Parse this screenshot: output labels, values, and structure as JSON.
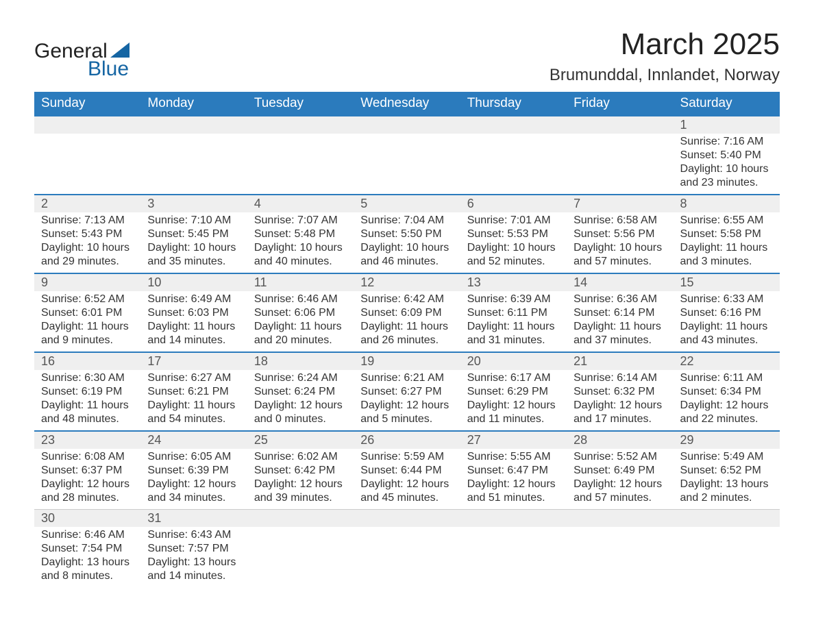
{
  "brand": {
    "name1": "General",
    "name2": "Blue"
  },
  "header": {
    "title": "March 2025",
    "location": "Brumunddal, Innlandet, Norway"
  },
  "colors": {
    "header_bg": "#2b7bbd",
    "header_text": "#ffffff",
    "row_divider": "#2b7bbd",
    "daynum_bg": "#efefef",
    "text": "#333333",
    "logo_blue": "#1565a3"
  },
  "calendar": {
    "type": "table",
    "columns": [
      "Sunday",
      "Monday",
      "Tuesday",
      "Wednesday",
      "Thursday",
      "Friday",
      "Saturday"
    ],
    "weeks": [
      [
        null,
        null,
        null,
        null,
        null,
        null,
        {
          "day": "1",
          "sunrise": "Sunrise: 7:16 AM",
          "sunset": "Sunset: 5:40 PM",
          "daylight1": "Daylight: 10 hours",
          "daylight2": "and 23 minutes."
        }
      ],
      [
        {
          "day": "2",
          "sunrise": "Sunrise: 7:13 AM",
          "sunset": "Sunset: 5:43 PM",
          "daylight1": "Daylight: 10 hours",
          "daylight2": "and 29 minutes."
        },
        {
          "day": "3",
          "sunrise": "Sunrise: 7:10 AM",
          "sunset": "Sunset: 5:45 PM",
          "daylight1": "Daylight: 10 hours",
          "daylight2": "and 35 minutes."
        },
        {
          "day": "4",
          "sunrise": "Sunrise: 7:07 AM",
          "sunset": "Sunset: 5:48 PM",
          "daylight1": "Daylight: 10 hours",
          "daylight2": "and 40 minutes."
        },
        {
          "day": "5",
          "sunrise": "Sunrise: 7:04 AM",
          "sunset": "Sunset: 5:50 PM",
          "daylight1": "Daylight: 10 hours",
          "daylight2": "and 46 minutes."
        },
        {
          "day": "6",
          "sunrise": "Sunrise: 7:01 AM",
          "sunset": "Sunset: 5:53 PM",
          "daylight1": "Daylight: 10 hours",
          "daylight2": "and 52 minutes."
        },
        {
          "day": "7",
          "sunrise": "Sunrise: 6:58 AM",
          "sunset": "Sunset: 5:56 PM",
          "daylight1": "Daylight: 10 hours",
          "daylight2": "and 57 minutes."
        },
        {
          "day": "8",
          "sunrise": "Sunrise: 6:55 AM",
          "sunset": "Sunset: 5:58 PM",
          "daylight1": "Daylight: 11 hours",
          "daylight2": "and 3 minutes."
        }
      ],
      [
        {
          "day": "9",
          "sunrise": "Sunrise: 6:52 AM",
          "sunset": "Sunset: 6:01 PM",
          "daylight1": "Daylight: 11 hours",
          "daylight2": "and 9 minutes."
        },
        {
          "day": "10",
          "sunrise": "Sunrise: 6:49 AM",
          "sunset": "Sunset: 6:03 PM",
          "daylight1": "Daylight: 11 hours",
          "daylight2": "and 14 minutes."
        },
        {
          "day": "11",
          "sunrise": "Sunrise: 6:46 AM",
          "sunset": "Sunset: 6:06 PM",
          "daylight1": "Daylight: 11 hours",
          "daylight2": "and 20 minutes."
        },
        {
          "day": "12",
          "sunrise": "Sunrise: 6:42 AM",
          "sunset": "Sunset: 6:09 PM",
          "daylight1": "Daylight: 11 hours",
          "daylight2": "and 26 minutes."
        },
        {
          "day": "13",
          "sunrise": "Sunrise: 6:39 AM",
          "sunset": "Sunset: 6:11 PM",
          "daylight1": "Daylight: 11 hours",
          "daylight2": "and 31 minutes."
        },
        {
          "day": "14",
          "sunrise": "Sunrise: 6:36 AM",
          "sunset": "Sunset: 6:14 PM",
          "daylight1": "Daylight: 11 hours",
          "daylight2": "and 37 minutes."
        },
        {
          "day": "15",
          "sunrise": "Sunrise: 6:33 AM",
          "sunset": "Sunset: 6:16 PM",
          "daylight1": "Daylight: 11 hours",
          "daylight2": "and 43 minutes."
        }
      ],
      [
        {
          "day": "16",
          "sunrise": "Sunrise: 6:30 AM",
          "sunset": "Sunset: 6:19 PM",
          "daylight1": "Daylight: 11 hours",
          "daylight2": "and 48 minutes."
        },
        {
          "day": "17",
          "sunrise": "Sunrise: 6:27 AM",
          "sunset": "Sunset: 6:21 PM",
          "daylight1": "Daylight: 11 hours",
          "daylight2": "and 54 minutes."
        },
        {
          "day": "18",
          "sunrise": "Sunrise: 6:24 AM",
          "sunset": "Sunset: 6:24 PM",
          "daylight1": "Daylight: 12 hours",
          "daylight2": "and 0 minutes."
        },
        {
          "day": "19",
          "sunrise": "Sunrise: 6:21 AM",
          "sunset": "Sunset: 6:27 PM",
          "daylight1": "Daylight: 12 hours",
          "daylight2": "and 5 minutes."
        },
        {
          "day": "20",
          "sunrise": "Sunrise: 6:17 AM",
          "sunset": "Sunset: 6:29 PM",
          "daylight1": "Daylight: 12 hours",
          "daylight2": "and 11 minutes."
        },
        {
          "day": "21",
          "sunrise": "Sunrise: 6:14 AM",
          "sunset": "Sunset: 6:32 PM",
          "daylight1": "Daylight: 12 hours",
          "daylight2": "and 17 minutes."
        },
        {
          "day": "22",
          "sunrise": "Sunrise: 6:11 AM",
          "sunset": "Sunset: 6:34 PM",
          "daylight1": "Daylight: 12 hours",
          "daylight2": "and 22 minutes."
        }
      ],
      [
        {
          "day": "23",
          "sunrise": "Sunrise: 6:08 AM",
          "sunset": "Sunset: 6:37 PM",
          "daylight1": "Daylight: 12 hours",
          "daylight2": "and 28 minutes."
        },
        {
          "day": "24",
          "sunrise": "Sunrise: 6:05 AM",
          "sunset": "Sunset: 6:39 PM",
          "daylight1": "Daylight: 12 hours",
          "daylight2": "and 34 minutes."
        },
        {
          "day": "25",
          "sunrise": "Sunrise: 6:02 AM",
          "sunset": "Sunset: 6:42 PM",
          "daylight1": "Daylight: 12 hours",
          "daylight2": "and 39 minutes."
        },
        {
          "day": "26",
          "sunrise": "Sunrise: 5:59 AM",
          "sunset": "Sunset: 6:44 PM",
          "daylight1": "Daylight: 12 hours",
          "daylight2": "and 45 minutes."
        },
        {
          "day": "27",
          "sunrise": "Sunrise: 5:55 AM",
          "sunset": "Sunset: 6:47 PM",
          "daylight1": "Daylight: 12 hours",
          "daylight2": "and 51 minutes."
        },
        {
          "day": "28",
          "sunrise": "Sunrise: 5:52 AM",
          "sunset": "Sunset: 6:49 PM",
          "daylight1": "Daylight: 12 hours",
          "daylight2": "and 57 minutes."
        },
        {
          "day": "29",
          "sunrise": "Sunrise: 5:49 AM",
          "sunset": "Sunset: 6:52 PM",
          "daylight1": "Daylight: 13 hours",
          "daylight2": "and 2 minutes."
        }
      ],
      [
        {
          "day": "30",
          "sunrise": "Sunrise: 6:46 AM",
          "sunset": "Sunset: 7:54 PM",
          "daylight1": "Daylight: 13 hours",
          "daylight2": "and 8 minutes."
        },
        {
          "day": "31",
          "sunrise": "Sunrise: 6:43 AM",
          "sunset": "Sunset: 7:57 PM",
          "daylight1": "Daylight: 13 hours",
          "daylight2": "and 14 minutes."
        },
        null,
        null,
        null,
        null,
        null
      ]
    ]
  }
}
